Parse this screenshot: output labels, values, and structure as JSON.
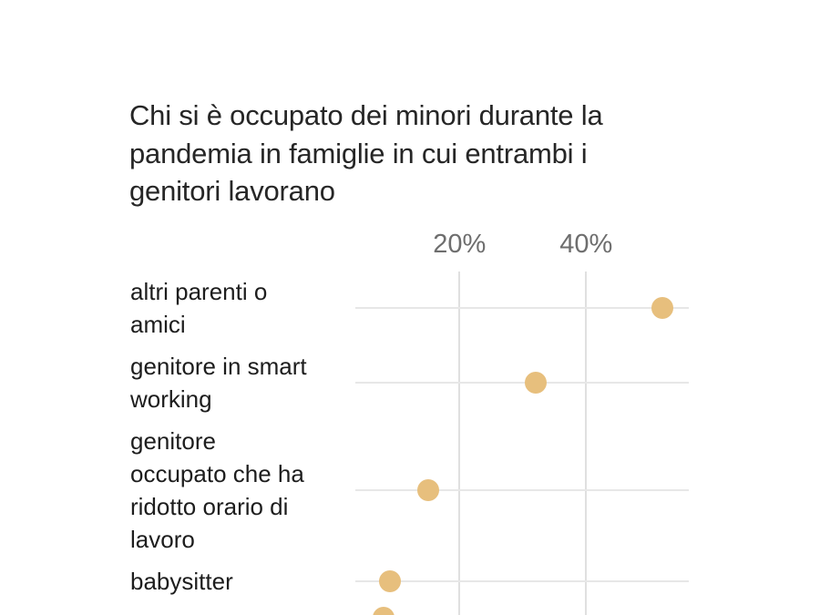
{
  "page": {
    "background": "#ffffff"
  },
  "title_lines": [
    "Chi si è occupato dei minori durante la",
    "pandemia in famiglie in cui entrambi i",
    "genitori lavorano"
  ],
  "chart_data": {
    "type": "scatter",
    "variant": "horizontal-dot-plot",
    "title": "Chi si è occupato dei minori durante la pandemia in famiglie in cui entrambi i genitori lavorano",
    "categories": [
      "altri parenti o amici",
      "genitore in smart working",
      "genitore occupato che ha ridotto orario di lavoro",
      "babysitter",
      ""
    ],
    "values": [
      52,
      32,
      15,
      9,
      8
    ],
    "unit": "%",
    "label_lines": [
      [
        "altri parenti o",
        "amici"
      ],
      [
        "genitore in smart",
        "working"
      ],
      [
        "genitore",
        "occupato che ha",
        "ridotto orario di",
        "lavoro"
      ],
      [
        "babysitter"
      ],
      []
    ],
    "x_axis": {
      "ticks": [
        {
          "label": "20%",
          "value": 20
        },
        {
          "label": "40%",
          "value": 40
        }
      ],
      "xlim_visible": [
        3.6,
        56.2
      ]
    },
    "grid": "vertical-only",
    "legend": "none",
    "last_row_clipped_at_bottom": true,
    "xlabel": "",
    "ylabel": ""
  },
  "colors": {
    "dot": "#e7bf7d",
    "vertical_gridline": "#e0e0e0",
    "row_line": "#e7e7e7",
    "axis_text": "#6e6e6e",
    "title_text": "#262626",
    "label_text": "#1d1d1d",
    "background": "#ffffff"
  }
}
